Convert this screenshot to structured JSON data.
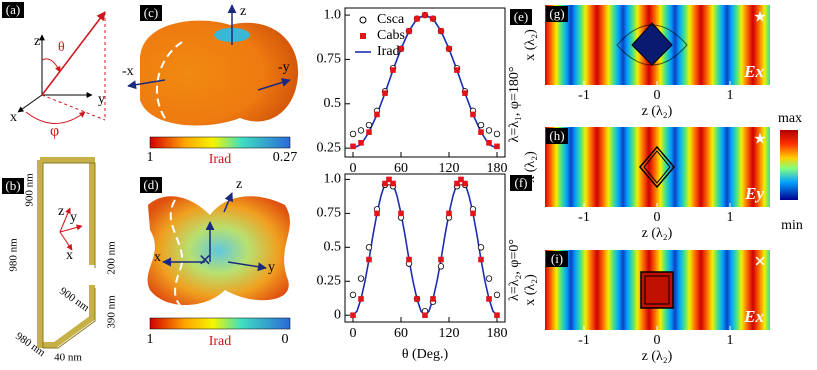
{
  "chart_data": [
    {
      "type": "line",
      "label": "(e)",
      "side_label": "λ=λ₁, φ=180°",
      "x": [
        0,
        10,
        20,
        30,
        40,
        50,
        60,
        70,
        80,
        90,
        100,
        110,
        120,
        130,
        140,
        150,
        160,
        170,
        180
      ],
      "series": [
        {
          "name": "Csca",
          "marker": "circle",
          "color": "#000000",
          "values": [
            0.33,
            0.35,
            0.38,
            0.46,
            0.57,
            0.7,
            0.81,
            0.91,
            0.98,
            1.0,
            0.98,
            0.91,
            0.81,
            0.7,
            0.57,
            0.46,
            0.38,
            0.35,
            0.33
          ]
        },
        {
          "name": "Cabs",
          "marker": "square",
          "color": "#e4141b",
          "values": [
            0.26,
            0.28,
            0.34,
            0.44,
            0.56,
            0.69,
            0.81,
            0.91,
            0.98,
            1.0,
            0.98,
            0.91,
            0.81,
            0.69,
            0.56,
            0.44,
            0.34,
            0.28,
            0.26
          ]
        },
        {
          "name": "Irad",
          "marker": "line",
          "color": "#1a2fb0",
          "values": [
            0.25,
            0.27,
            0.34,
            0.44,
            0.56,
            0.69,
            0.81,
            0.91,
            0.98,
            1.0,
            0.98,
            0.91,
            0.81,
            0.69,
            0.56,
            0.44,
            0.34,
            0.27,
            0.25
          ]
        }
      ],
      "xlim": [
        -10,
        190
      ],
      "xticks": [
        0,
        60,
        120,
        180
      ],
      "ylim": [
        0.2,
        1.04
      ],
      "yticks": [
        0.25,
        0.5,
        0.75,
        {
          "value": 1,
          "label": "1.0"
        }
      ],
      "legend": "top-left"
    },
    {
      "type": "line",
      "label": "(f)",
      "side_label": "λ=λ₂, φ=0°",
      "xlabel": "θ (Deg.)",
      "x": [
        0,
        5,
        10,
        15,
        20,
        25,
        30,
        35,
        40,
        45,
        50,
        55,
        60,
        65,
        70,
        75,
        80,
        85,
        90,
        95,
        100,
        105,
        110,
        115,
        120,
        125,
        130,
        135,
        140,
        145,
        150,
        155,
        160,
        165,
        170,
        175,
        180
      ],
      "series": [
        {
          "marker": "circle",
          "color": "#000000",
          "values": [
            0.15,
            null,
            0.27,
            null,
            0.5,
            null,
            0.78,
            null,
            0.96,
            0.98,
            0.95,
            null,
            0.72,
            null,
            0.38,
            null,
            0.12,
            null,
            0.03,
            null,
            0.1,
            null,
            0.36,
            null,
            0.72,
            null,
            0.95,
            0.98,
            0.96,
            null,
            0.78,
            null,
            0.5,
            null,
            0.27,
            null,
            0.15
          ]
        },
        {
          "marker": "square",
          "color": "#e4141b",
          "values": [
            0,
            null,
            0.12,
            null,
            0.41,
            null,
            0.75,
            null,
            0.97,
            1.0,
            0.97,
            null,
            0.75,
            null,
            0.41,
            null,
            0.12,
            null,
            0,
            null,
            0.12,
            null,
            0.41,
            null,
            0.75,
            null,
            0.97,
            1.0,
            0.97,
            null,
            0.75,
            null,
            0.41,
            null,
            0.12,
            null,
            0
          ]
        },
        {
          "marker": "line",
          "color": "#1a2fb0",
          "values": [
            0,
            0.03,
            0.12,
            0.25,
            0.41,
            0.59,
            0.75,
            0.88,
            0.97,
            1.0,
            0.97,
            0.88,
            0.75,
            0.59,
            0.41,
            0.25,
            0.12,
            0.03,
            0,
            0.03,
            0.12,
            0.25,
            0.41,
            0.59,
            0.75,
            0.88,
            0.97,
            1.0,
            0.97,
            0.88,
            0.75,
            0.59,
            0.41,
            0.25,
            0.12,
            0.03,
            0
          ]
        }
      ],
      "xlim": [
        -10,
        190
      ],
      "xticks": [
        0,
        60,
        120,
        180
      ],
      "ylim": [
        -0.05,
        1.04
      ],
      "yticks": [
        0,
        0.25,
        0.5,
        0.75,
        {
          "value": 1,
          "label": "1.0"
        }
      ]
    }
  ],
  "panels": {
    "a": {
      "label": "(a)",
      "z": "z",
      "theta": "θ",
      "x": "x",
      "y": "y",
      "phi": "φ"
    },
    "b": {
      "label": "(b)",
      "dims": [
        "980 nm",
        "900 nm",
        "200 nm",
        "900 nm",
        "390 nm",
        "980 nm",
        "40 nm"
      ],
      "z": "z",
      "y": "y",
      "x": "x"
    },
    "c": {
      "label": "(c)",
      "z": "z",
      "mx": "-x",
      "my": "-y",
      "cb_max": "1",
      "cb_min": "0.27",
      "cb_title": "Irad"
    },
    "d": {
      "label": "(d)",
      "z": "z",
      "x": "x",
      "y": "y",
      "cb_max": "1",
      "cb_min": "0",
      "cb_title": "Irad"
    },
    "maps": [
      {
        "label": "(g)",
        "field": "Ex",
        "symbol": "★",
        "ylabel": "x (λ₂)",
        "xlabel": "z (λ₂)",
        "xticks": [
          "-1",
          "0",
          "1"
        ]
      },
      {
        "label": "(h)",
        "field": "Ey",
        "symbol": "★",
        "ylabel": "x (λ₂)",
        "xlabel": "z (λ₂)",
        "xticks": [
          "-1",
          "0",
          "1"
        ]
      },
      {
        "label": "(i)",
        "field": "Ex",
        "symbol": "✕",
        "ylabel": "x (λ₂)",
        "xlabel": "z (λ₂)",
        "xticks": [
          "-1",
          "0",
          "1"
        ]
      }
    ],
    "map_colorbar": {
      "max": "max",
      "min": "min"
    }
  }
}
